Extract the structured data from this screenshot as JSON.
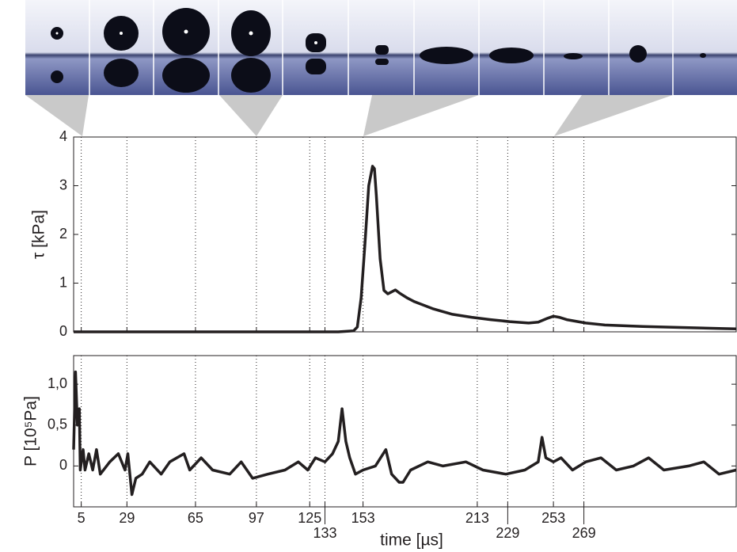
{
  "chart_data": [
    {
      "type": "line",
      "ylabel": "τ [kPa]",
      "xlim": [
        1,
        349
      ],
      "ylim": [
        0,
        4
      ],
      "yticks": [
        0,
        1,
        2,
        3,
        4
      ],
      "xticks": [
        5,
        29,
        65,
        97,
        125,
        133,
        153,
        213,
        229,
        253,
        269
      ],
      "xgrid": true,
      "series": [
        {
          "color": "#231f20",
          "x": [
            1,
            20,
            40,
            60,
            80,
            100,
            120,
            140,
            148,
            150,
            152,
            154,
            156,
            158,
            159,
            160,
            162,
            164,
            166,
            168,
            170,
            172,
            176,
            180,
            190,
            200,
            210,
            220,
            230,
            240,
            245,
            250,
            253,
            256,
            260,
            270,
            280,
            300,
            320,
            340,
            349
          ],
          "values": [
            0,
            0,
            0,
            0,
            0,
            0,
            0,
            0,
            0.02,
            0.1,
            0.7,
            1.8,
            3.0,
            3.4,
            3.35,
            2.8,
            1.5,
            0.85,
            0.78,
            0.82,
            0.86,
            0.8,
            0.7,
            0.62,
            0.47,
            0.36,
            0.3,
            0.25,
            0.21,
            0.18,
            0.2,
            0.28,
            0.32,
            0.3,
            0.25,
            0.18,
            0.14,
            0.11,
            0.09,
            0.07,
            0.06
          ]
        }
      ]
    },
    {
      "type": "line",
      "ylabel": "P [10⁵Pa]",
      "xlabel": "time [µs]",
      "xlim": [
        1,
        349
      ],
      "ylim": [
        -0.5,
        1.35
      ],
      "yticks": [
        0,
        {
          "value": 0.5,
          "label": "0,5"
        },
        {
          "value": 1,
          "label": "1,0"
        }
      ],
      "xticks": [
        5,
        29,
        65,
        97,
        125,
        133,
        153,
        213,
        229,
        253,
        269
      ],
      "xgrid": true,
      "series": [
        {
          "color": "#231f20",
          "x": [
            1,
            2,
            3,
            4,
            4.5,
            6,
            7,
            9,
            11,
            13,
            15,
            20,
            24.5,
            28,
            29.5,
            31.6,
            33.7,
            37,
            41,
            47,
            51.5,
            59,
            62,
            68,
            74,
            83,
            89,
            95,
            103,
            112,
            119,
            124,
            128,
            133,
            137,
            140,
            142,
            144,
            146,
            149,
            153,
            159.5,
            165,
            168,
            172,
            174,
            178,
            187,
            195,
            207,
            216,
            228,
            238,
            245,
            247,
            249,
            253,
            257,
            263,
            270,
            278,
            286,
            295,
            303,
            311,
            324,
            332,
            340,
            349
          ],
          "values": [
            0.2,
            1.15,
            0.5,
            0.7,
            -0.05,
            0.2,
            -0.05,
            0.15,
            -0.05,
            0.2,
            -0.1,
            0.05,
            0.15,
            -0.05,
            0.15,
            -0.35,
            -0.15,
            -0.1,
            0.05,
            -0.1,
            0.05,
            0.15,
            -0.05,
            0.1,
            -0.05,
            -0.1,
            0.05,
            -0.15,
            -0.1,
            -0.05,
            0.05,
            -0.05,
            0.1,
            0.05,
            0.15,
            0.3,
            0.7,
            0.3,
            0.1,
            -0.1,
            -0.05,
            0,
            0.2,
            -0.1,
            -0.2,
            -0.2,
            -0.05,
            0.05,
            0,
            0.05,
            -0.05,
            -0.1,
            -0.05,
            0.05,
            0.35,
            0.1,
            0.05,
            0.1,
            -0.05,
            0.05,
            0.1,
            -0.05,
            0,
            0.1,
            -0.05,
            0,
            0.05,
            -0.1,
            -0.05
          ]
        }
      ]
    }
  ]
}
